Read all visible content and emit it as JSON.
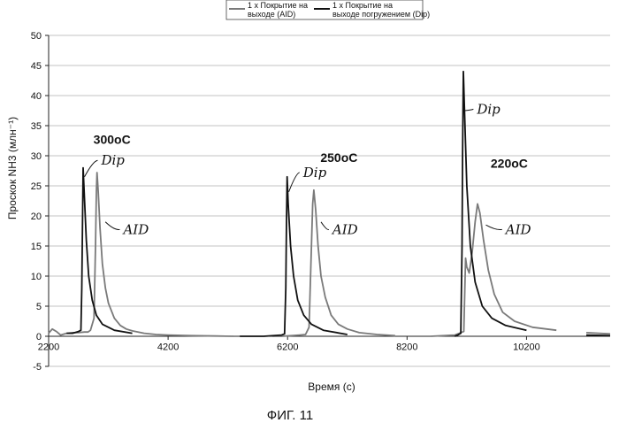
{
  "figure_caption": "ФИГ. 11",
  "chart_data": {
    "type": "line",
    "xlabel": "Время (с)",
    "ylabel": "Проскок NH3 (млн⁻¹)",
    "xlim": [
      2200,
      11600
    ],
    "ylim": [
      -5,
      50
    ],
    "x_ticks": [
      2200,
      4200,
      6200,
      8200,
      10200
    ],
    "y_ticks": [
      -5,
      0,
      5,
      10,
      15,
      20,
      25,
      30,
      35,
      40,
      45,
      50
    ],
    "grid": "horizontal",
    "legend_position": "top",
    "legend": [
      {
        "lines": [
          "1 x Покрытие на",
          "выходе (AID)"
        ]
      },
      {
        "lines": [
          "1 x Покрытие на",
          "выходе погружением (Dip)"
        ]
      }
    ],
    "series": [
      {
        "name": "1 x Покрытие на выходе (AID)",
        "color": "#7a7a7a",
        "points": [
          [
            2200,
            0.5
          ],
          [
            2260,
            1.2
          ],
          [
            2330,
            0.8
          ],
          [
            2400,
            0.2
          ],
          [
            2500,
            0.5
          ],
          [
            2600,
            0.6
          ],
          [
            2700,
            0.6
          ],
          [
            2800,
            0.7
          ],
          [
            2860,
            0.7
          ],
          [
            2900,
            1.0
          ],
          [
            2960,
            3.0
          ],
          [
            2985,
            15.0
          ],
          [
            3000,
            24.0
          ],
          [
            3010,
            27.2
          ],
          [
            3030,
            24.0
          ],
          [
            3060,
            18.0
          ],
          [
            3100,
            12.0
          ],
          [
            3150,
            8.0
          ],
          [
            3200,
            5.5
          ],
          [
            3300,
            3.0
          ],
          [
            3400,
            1.8
          ],
          [
            3500,
            1.2
          ],
          [
            3600,
            0.9
          ],
          [
            3800,
            0.5
          ],
          [
            4000,
            0.3
          ],
          [
            4200,
            0.2
          ],
          [
            4600,
            0.1
          ],
          [
            5000,
            0.05
          ],
          [
            5300,
            0.0
          ],
          [
            5950,
            0.0
          ],
          [
            6100,
            0.0
          ],
          [
            6400,
            0.2
          ],
          [
            6500,
            0.3
          ],
          [
            6560,
            1.5
          ],
          [
            6590,
            12.0
          ],
          [
            6620,
            22.0
          ],
          [
            6640,
            24.3
          ],
          [
            6670,
            21.0
          ],
          [
            6710,
            15.0
          ],
          [
            6760,
            10.0
          ],
          [
            6830,
            6.5
          ],
          [
            6930,
            3.5
          ],
          [
            7050,
            2.0
          ],
          [
            7200,
            1.2
          ],
          [
            7400,
            0.6
          ],
          [
            7700,
            0.3
          ],
          [
            8000,
            0.1
          ],
          [
            8600,
            0.0
          ],
          [
            9000,
            0.2
          ],
          [
            9150,
            0.8
          ],
          [
            9180,
            13.0
          ],
          [
            9200,
            11.5
          ],
          [
            9240,
            10.5
          ],
          [
            9290,
            14.0
          ],
          [
            9340,
            19.0
          ],
          [
            9380,
            22.0
          ],
          [
            9420,
            20.5
          ],
          [
            9480,
            16.0
          ],
          [
            9560,
            11.0
          ],
          [
            9660,
            7.0
          ],
          [
            9800,
            4.0
          ],
          [
            10000,
            2.5
          ],
          [
            10300,
            1.5
          ],
          [
            10700,
            1.0
          ],
          [
            11200,
            0.6
          ],
          [
            11600,
            0.4
          ]
        ]
      },
      {
        "name": "1 x Покрытие на выходе погружением (Dip)",
        "color": "#111111",
        "points": [
          [
            2500,
            0.5
          ],
          [
            2600,
            0.5
          ],
          [
            2700,
            0.8
          ],
          [
            2740,
            1.0
          ],
          [
            2755,
            8.0
          ],
          [
            2768,
            20.0
          ],
          [
            2778,
            28.0
          ],
          [
            2795,
            24.0
          ],
          [
            2830,
            16.0
          ],
          [
            2870,
            10.0
          ],
          [
            2930,
            6.0
          ],
          [
            3000,
            3.5
          ],
          [
            3100,
            2.0
          ],
          [
            3300,
            1.0
          ],
          [
            3600,
            0.5
          ],
          [
            4200,
            0.1
          ],
          [
            5400,
            0.0
          ],
          [
            5800,
            0.0
          ],
          [
            6100,
            0.2
          ],
          [
            6150,
            0.4
          ],
          [
            6170,
            8.0
          ],
          [
            6180,
            18.0
          ],
          [
            6192,
            26.5
          ],
          [
            6210,
            22.0
          ],
          [
            6250,
            15.0
          ],
          [
            6300,
            10.0
          ],
          [
            6370,
            6.0
          ],
          [
            6470,
            3.5
          ],
          [
            6600,
            2.0
          ],
          [
            6800,
            1.0
          ],
          [
            7200,
            0.3
          ],
          [
            7800,
            0.1
          ],
          [
            9000,
            0.0
          ],
          [
            9050,
            0.2
          ],
          [
            9100,
            0.5
          ],
          [
            9120,
            15.0
          ],
          [
            9130,
            30.0
          ],
          [
            9142,
            44.0
          ],
          [
            9160,
            38.0
          ],
          [
            9200,
            25.0
          ],
          [
            9260,
            15.0
          ],
          [
            9340,
            9.0
          ],
          [
            9460,
            5.0
          ],
          [
            9620,
            3.0
          ],
          [
            9850,
            1.8
          ],
          [
            10200,
            1.0
          ],
          [
            10700,
            0.5
          ],
          [
            11200,
            0.2
          ],
          [
            11600,
            0.1
          ]
        ]
      }
    ],
    "annotations": [
      {
        "kind": "temperature",
        "text": "300oC",
        "x": 2950,
        "y": 32
      },
      {
        "kind": "temperature",
        "text": "250oC",
        "x": 6750,
        "y": 29
      },
      {
        "kind": "temperature",
        "text": "220oC",
        "x": 9600,
        "y": 28
      },
      {
        "kind": "handwritten",
        "text": "Dip",
        "x": 3080,
        "y": 28.5,
        "target": [
          2800,
          26.5
        ]
      },
      {
        "kind": "handwritten",
        "text": "AID",
        "x": 3450,
        "y": 17.0,
        "target": [
          3150,
          19.0
        ]
      },
      {
        "kind": "handwritten",
        "text": "Dip",
        "x": 6460,
        "y": 26.5,
        "target": [
          6220,
          24.0
        ]
      },
      {
        "kind": "handwritten",
        "text": "AID",
        "x": 6950,
        "y": 17.0,
        "target": [
          6760,
          19.0
        ]
      },
      {
        "kind": "handwritten",
        "text": "Dip",
        "x": 9370,
        "y": 37.0,
        "target": [
          9170,
          37.5
        ]
      },
      {
        "kind": "handwritten",
        "text": "AID",
        "x": 9850,
        "y": 17.0,
        "target": [
          9520,
          18.5
        ]
      }
    ]
  }
}
